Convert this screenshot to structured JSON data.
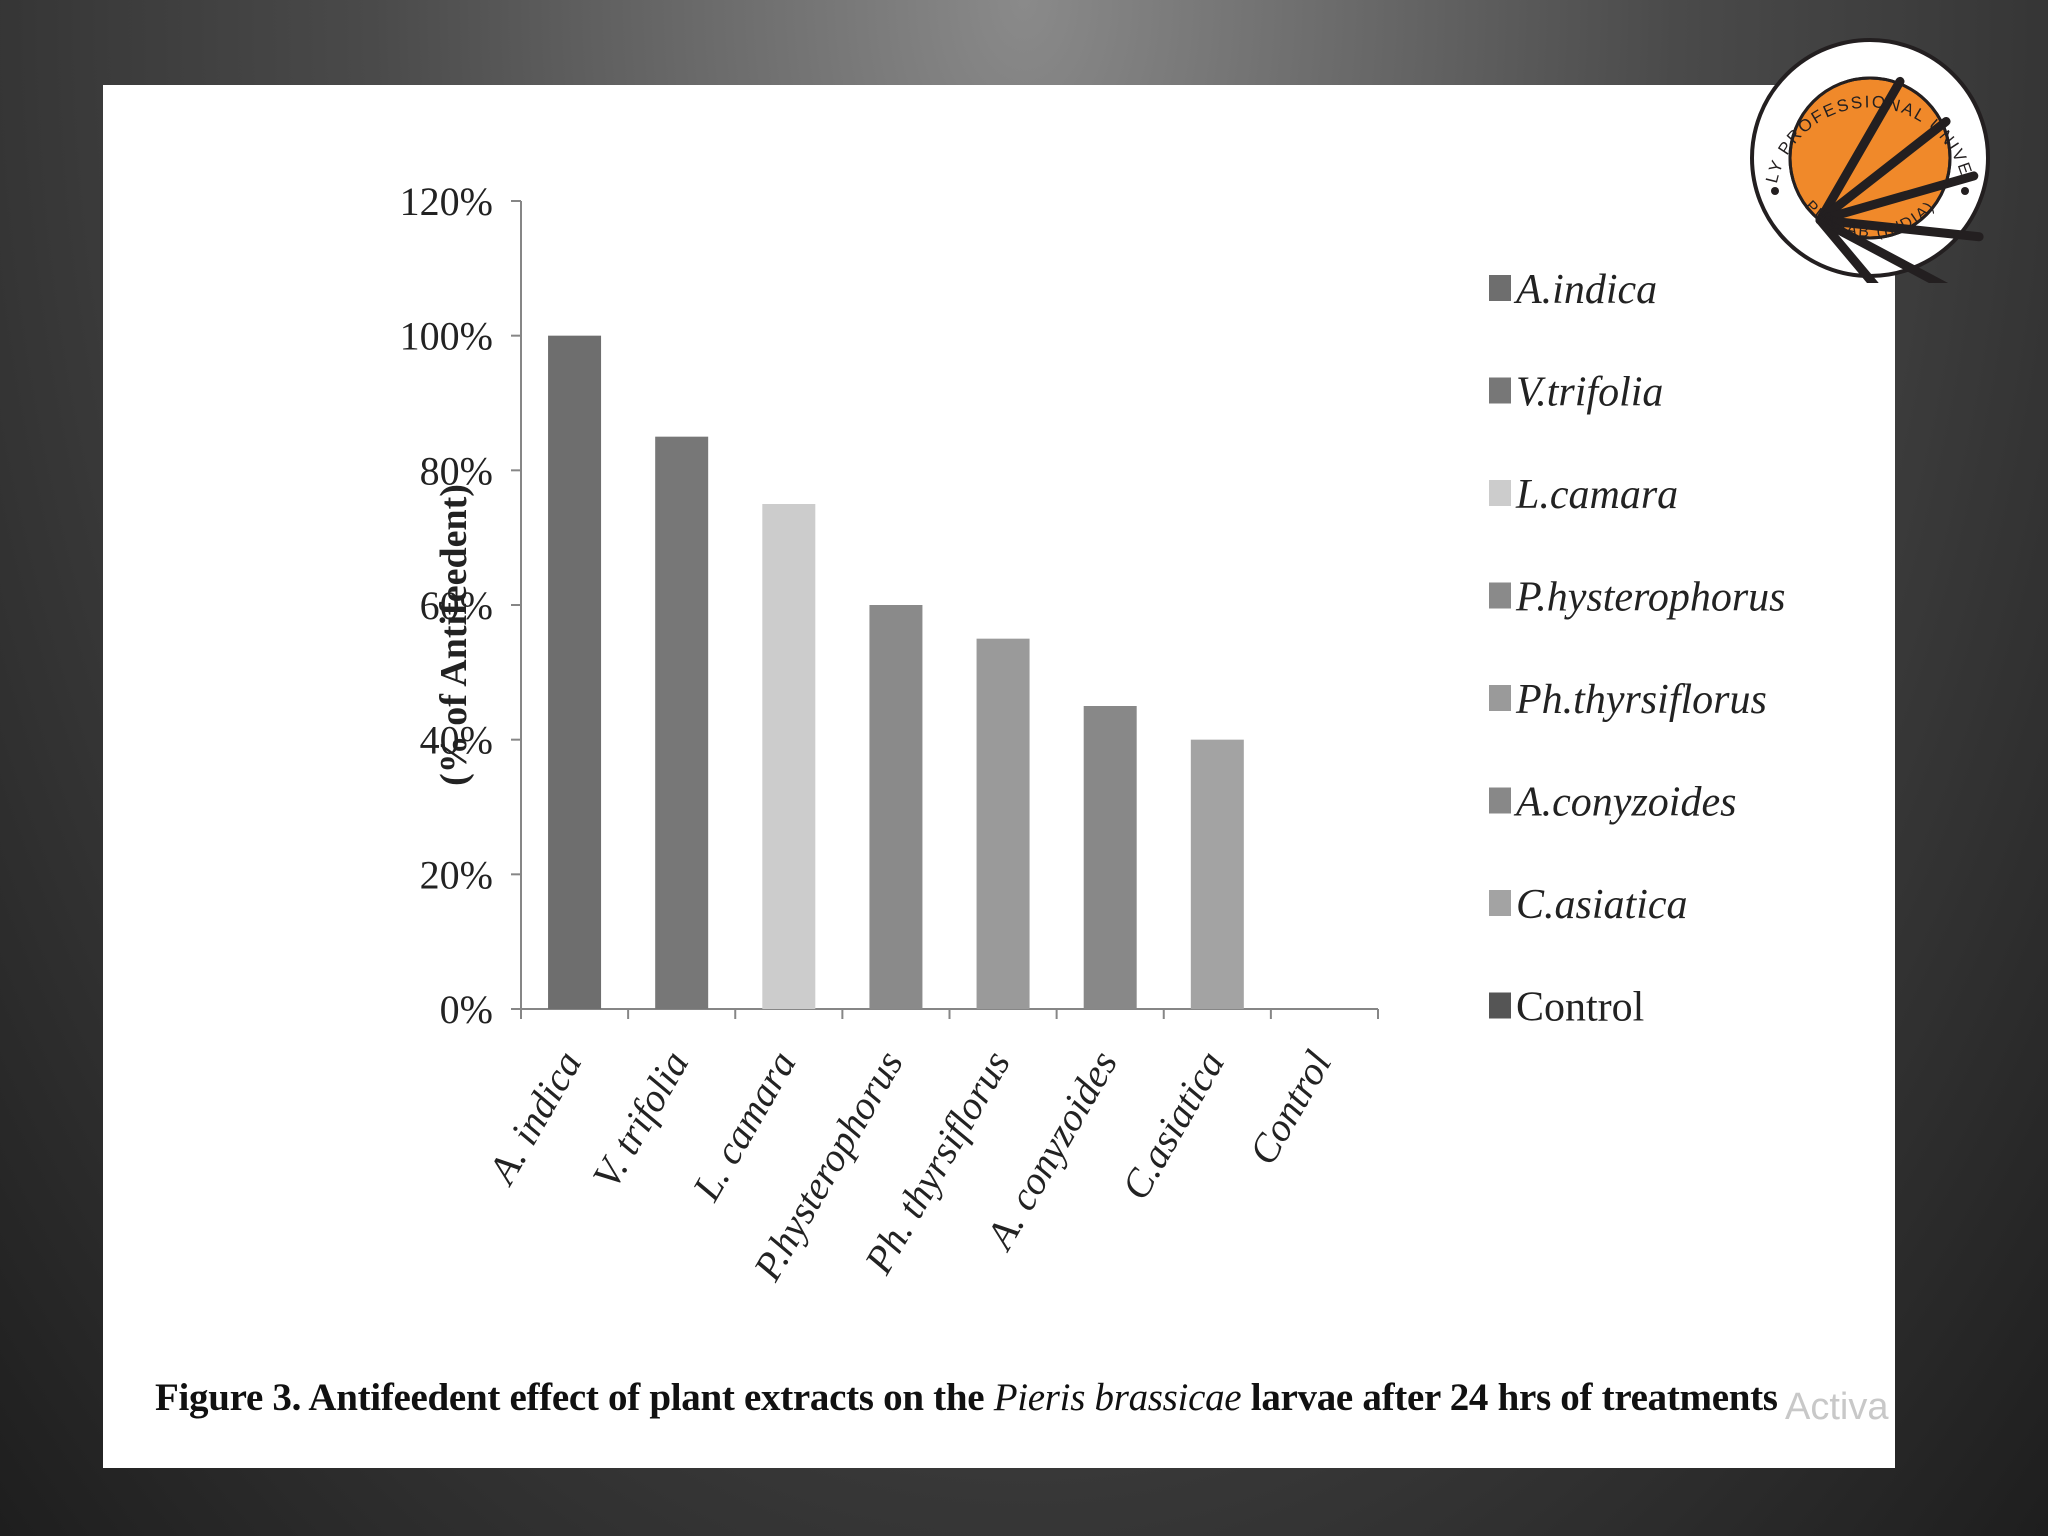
{
  "chart_data": {
    "type": "bar",
    "categories": [
      "A. indica",
      "V. trifolia",
      "L. camara",
      "P.hysterophorus",
      "Ph. thyrsiflorus",
      "A. conyzoides",
      "C.asiatica",
      "Control"
    ],
    "series": [
      {
        "values": [
          100,
          85,
          75,
          60,
          55,
          45,
          40,
          0
        ]
      }
    ],
    "bar_colors": [
      "#6e6e6e",
      "#777777",
      "#cccccc",
      "#8a8a8a",
      "#9a9a9a",
      "#888888",
      "#a3a3a3",
      "#555555"
    ],
    "ylabel": "(% of Antifeedent)",
    "ylim": [
      0,
      120
    ],
    "yticks": [
      "0%",
      "20%",
      "40%",
      "60%",
      "80%",
      "100%",
      "120%"
    ],
    "legend": {
      "placement": "right",
      "entries": [
        "A.indica",
        "V.trifolia",
        "L.camara",
        "P.hysterophorus",
        "Ph.thyrsiflorus",
        "A.conyzoides",
        "C.asiatica",
        "Control"
      ]
    },
    "grid": false
  },
  "caption": {
    "prefix": "Figure 3. Antifeedent effect of plant extracts on the ",
    "italic": "Pieris brassicae",
    "suffix": " larvae after 24 hrs of treatments"
  },
  "watermark": "Activa",
  "logo": {
    "text_top": "LOVELY PROFESSIONAL UNIVERSITY",
    "text_bottom": "PUNJAB (INDIA)",
    "colors": {
      "orange": "#f0892a",
      "dark": "#231f20"
    }
  }
}
